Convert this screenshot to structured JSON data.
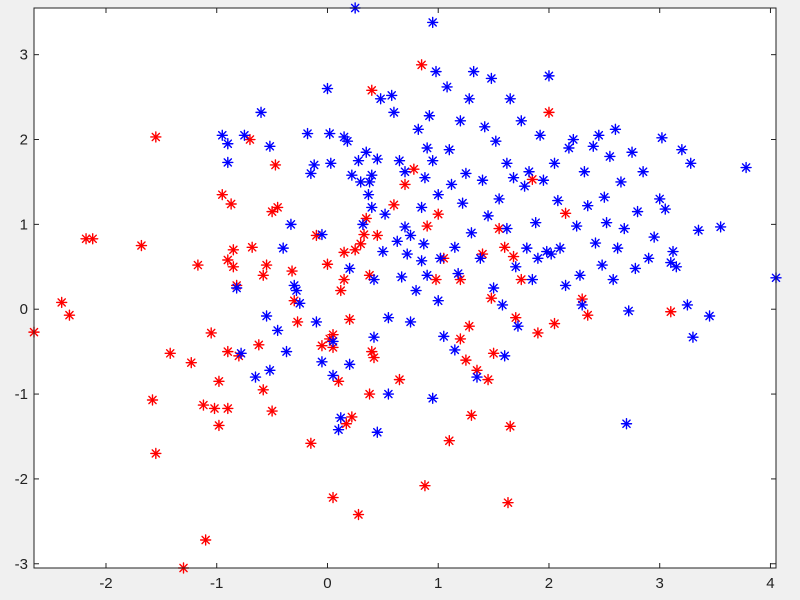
{
  "figure": {
    "background": "#f0f0f0",
    "axes_background": "#ffffff"
  },
  "chart_data": {
    "type": "scatter",
    "title": "",
    "xlabel": "",
    "ylabel": "",
    "xlim": [
      -2.65,
      4.05
    ],
    "ylim": [
      -3.05,
      3.55
    ],
    "grid": false,
    "legend": "none",
    "marker": "asterisk",
    "xticks": [
      -2,
      -1,
      0,
      1,
      2,
      3,
      4
    ],
    "yticks": [
      3,
      2,
      1,
      0,
      -1,
      -2,
      -3
    ],
    "series": [
      {
        "color": "#ff0000",
        "points": [
          [
            -2.65,
            -0.27
          ],
          [
            -2.4,
            0.08
          ],
          [
            -2.33,
            -0.07
          ],
          [
            -2.18,
            0.83
          ],
          [
            -2.12,
            0.83
          ],
          [
            -1.68,
            0.75
          ],
          [
            -1.55,
            2.03
          ],
          [
            -1.58,
            -1.07
          ],
          [
            -1.55,
            -1.7
          ],
          [
            -1.42,
            -0.52
          ],
          [
            -1.3,
            -3.05
          ],
          [
            -1.23,
            -0.63
          ],
          [
            -1.17,
            0.52
          ],
          [
            -1.12,
            -1.13
          ],
          [
            -1.1,
            -2.72
          ],
          [
            -1.05,
            -0.28
          ],
          [
            -1.02,
            -1.17
          ],
          [
            -0.98,
            -0.85
          ],
          [
            -0.98,
            -1.37
          ],
          [
            -0.95,
            1.35
          ],
          [
            -0.9,
            -0.5
          ],
          [
            -0.9,
            -1.17
          ],
          [
            -0.9,
            0.58
          ],
          [
            -0.87,
            1.24
          ],
          [
            -0.85,
            0.7
          ],
          [
            -0.85,
            0.5
          ],
          [
            -0.82,
            0.28
          ],
          [
            -0.8,
            -0.55
          ],
          [
            -0.7,
            2.0
          ],
          [
            -0.68,
            0.73
          ],
          [
            -0.62,
            -0.42
          ],
          [
            -0.58,
            -0.95
          ],
          [
            -0.58,
            0.4
          ],
          [
            -0.55,
            0.52
          ],
          [
            -0.5,
            1.15
          ],
          [
            -0.5,
            -1.2
          ],
          [
            -0.47,
            1.7
          ],
          [
            -0.45,
            1.2
          ],
          [
            -0.32,
            0.45
          ],
          [
            -0.3,
            0.1
          ],
          [
            -0.27,
            -0.15
          ],
          [
            -0.15,
            -1.58
          ],
          [
            -0.1,
            0.87
          ],
          [
            -0.05,
            -0.43
          ],
          [
            0.0,
            0.53
          ],
          [
            0.02,
            -0.35
          ],
          [
            0.05,
            -0.45
          ],
          [
            0.05,
            -0.3
          ],
          [
            0.05,
            -2.22
          ],
          [
            0.1,
            -0.85
          ],
          [
            0.12,
            0.22
          ],
          [
            0.15,
            0.67
          ],
          [
            0.15,
            0.35
          ],
          [
            0.17,
            -1.35
          ],
          [
            0.2,
            -0.12
          ],
          [
            0.22,
            -1.27
          ],
          [
            0.25,
            0.7
          ],
          [
            0.28,
            -2.42
          ],
          [
            0.3,
            0.77
          ],
          [
            0.33,
            0.88
          ],
          [
            0.35,
            1.07
          ],
          [
            0.38,
            0.4
          ],
          [
            0.4,
            2.58
          ],
          [
            0.38,
            -1.0
          ],
          [
            0.4,
            -0.5
          ],
          [
            0.42,
            -0.57
          ],
          [
            0.45,
            0.87
          ],
          [
            0.6,
            1.23
          ],
          [
            0.65,
            -0.83
          ],
          [
            0.7,
            1.47
          ],
          [
            0.78,
            1.65
          ],
          [
            0.85,
            2.88
          ],
          [
            0.88,
            -2.08
          ],
          [
            0.9,
            0.98
          ],
          [
            0.98,
            0.35
          ],
          [
            1.0,
            1.12
          ],
          [
            1.05,
            0.6
          ],
          [
            1.1,
            -1.55
          ],
          [
            1.2,
            0.35
          ],
          [
            1.2,
            -0.35
          ],
          [
            1.25,
            -0.6
          ],
          [
            1.28,
            -0.2
          ],
          [
            1.3,
            -1.25
          ],
          [
            1.35,
            -0.72
          ],
          [
            1.4,
            0.65
          ],
          [
            1.45,
            -0.83
          ],
          [
            1.48,
            0.13
          ],
          [
            1.5,
            -0.52
          ],
          [
            1.55,
            0.95
          ],
          [
            1.6,
            0.73
          ],
          [
            1.63,
            -2.28
          ],
          [
            1.65,
            -1.38
          ],
          [
            1.68,
            0.62
          ],
          [
            1.7,
            -0.1
          ],
          [
            1.75,
            0.35
          ],
          [
            1.85,
            1.53
          ],
          [
            1.9,
            -0.28
          ],
          [
            2.0,
            2.32
          ],
          [
            2.05,
            -0.17
          ],
          [
            2.15,
            1.13
          ],
          [
            2.3,
            0.12
          ],
          [
            2.35,
            -0.07
          ],
          [
            3.1,
            -0.03
          ]
        ]
      },
      {
        "color": "#0000ff",
        "points": [
          [
            -0.95,
            2.05
          ],
          [
            -0.9,
            1.73
          ],
          [
            -0.9,
            1.95
          ],
          [
            -0.82,
            0.25
          ],
          [
            -0.78,
            -0.52
          ],
          [
            -0.75,
            2.05
          ],
          [
            -0.65,
            -0.8
          ],
          [
            -0.6,
            2.32
          ],
          [
            -0.55,
            -0.08
          ],
          [
            -0.52,
            1.92
          ],
          [
            -0.52,
            -0.72
          ],
          [
            -0.45,
            -0.25
          ],
          [
            -0.4,
            0.72
          ],
          [
            -0.37,
            -0.5
          ],
          [
            -0.33,
            1.0
          ],
          [
            -0.3,
            0.28
          ],
          [
            -0.28,
            0.22
          ],
          [
            -0.25,
            0.07
          ],
          [
            -0.18,
            2.07
          ],
          [
            -0.15,
            1.6
          ],
          [
            -0.12,
            1.7
          ],
          [
            -0.1,
            -0.15
          ],
          [
            -0.05,
            0.88
          ],
          [
            -0.05,
            -0.62
          ],
          [
            0.0,
            2.6
          ],
          [
            0.02,
            2.07
          ],
          [
            0.03,
            1.72
          ],
          [
            0.05,
            -0.78
          ],
          [
            0.05,
            -0.38
          ],
          [
            0.1,
            -1.42
          ],
          [
            0.12,
            -1.28
          ],
          [
            0.15,
            2.03
          ],
          [
            0.18,
            1.98
          ],
          [
            0.2,
            0.48
          ],
          [
            0.2,
            -0.65
          ],
          [
            0.22,
            1.58
          ],
          [
            0.25,
            3.55
          ],
          [
            0.28,
            1.75
          ],
          [
            0.3,
            1.5
          ],
          [
            0.32,
            1.0
          ],
          [
            0.35,
            1.85
          ],
          [
            0.37,
            1.35
          ],
          [
            0.38,
            1.5
          ],
          [
            0.4,
            1.58
          ],
          [
            0.4,
            1.2
          ],
          [
            0.42,
            0.35
          ],
          [
            0.42,
            -0.33
          ],
          [
            0.45,
            1.77
          ],
          [
            0.45,
            -1.45
          ],
          [
            0.48,
            2.48
          ],
          [
            0.5,
            0.68
          ],
          [
            0.52,
            1.12
          ],
          [
            0.55,
            -0.1
          ],
          [
            0.55,
            -1.0
          ],
          [
            0.58,
            2.52
          ],
          [
            0.6,
            2.32
          ],
          [
            0.63,
            0.8
          ],
          [
            0.65,
            1.75
          ],
          [
            0.67,
            0.38
          ],
          [
            0.7,
            1.62
          ],
          [
            0.7,
            0.97
          ],
          [
            0.72,
            0.65
          ],
          [
            0.75,
            0.87
          ],
          [
            0.75,
            -0.15
          ],
          [
            0.8,
            0.22
          ],
          [
            0.82,
            2.12
          ],
          [
            0.85,
            1.2
          ],
          [
            0.85,
            0.57
          ],
          [
            0.87,
            0.77
          ],
          [
            0.88,
            1.55
          ],
          [
            0.9,
            1.9
          ],
          [
            0.9,
            0.4
          ],
          [
            0.92,
            2.28
          ],
          [
            0.95,
            3.38
          ],
          [
            0.95,
            1.75
          ],
          [
            0.95,
            -1.05
          ],
          [
            0.98,
            2.8
          ],
          [
            1.0,
            1.35
          ],
          [
            1.0,
            0.1
          ],
          [
            1.02,
            0.6
          ],
          [
            1.05,
            -0.32
          ],
          [
            1.08,
            2.62
          ],
          [
            1.1,
            1.88
          ],
          [
            1.12,
            1.47
          ],
          [
            1.15,
            0.73
          ],
          [
            1.15,
            -0.48
          ],
          [
            1.18,
            0.42
          ],
          [
            1.2,
            2.22
          ],
          [
            1.22,
            1.25
          ],
          [
            1.25,
            1.6
          ],
          [
            1.28,
            2.48
          ],
          [
            1.3,
            0.9
          ],
          [
            1.32,
            2.8
          ],
          [
            1.35,
            -0.8
          ],
          [
            1.38,
            0.6
          ],
          [
            1.4,
            1.52
          ],
          [
            1.42,
            2.15
          ],
          [
            1.45,
            1.1
          ],
          [
            1.48,
            2.72
          ],
          [
            1.5,
            0.25
          ],
          [
            1.52,
            1.98
          ],
          [
            1.55,
            1.3
          ],
          [
            1.58,
            0.05
          ],
          [
            1.6,
            -0.55
          ],
          [
            1.62,
            1.72
          ],
          [
            1.62,
            0.95
          ],
          [
            1.65,
            2.48
          ],
          [
            1.68,
            1.55
          ],
          [
            1.7,
            0.5
          ],
          [
            1.72,
            -0.2
          ],
          [
            1.75,
            2.22
          ],
          [
            1.78,
            1.45
          ],
          [
            1.8,
            0.72
          ],
          [
            1.82,
            1.62
          ],
          [
            1.85,
            0.35
          ],
          [
            1.88,
            1.02
          ],
          [
            1.9,
            0.6
          ],
          [
            1.92,
            2.05
          ],
          [
            1.95,
            1.52
          ],
          [
            1.98,
            0.68
          ],
          [
            2.0,
            2.75
          ],
          [
            2.02,
            0.65
          ],
          [
            2.05,
            1.72
          ],
          [
            2.08,
            1.28
          ],
          [
            2.1,
            0.72
          ],
          [
            2.15,
            0.28
          ],
          [
            2.18,
            1.9
          ],
          [
            2.22,
            2.0
          ],
          [
            2.25,
            0.98
          ],
          [
            2.28,
            0.4
          ],
          [
            2.3,
            0.05
          ],
          [
            2.32,
            1.62
          ],
          [
            2.35,
            1.22
          ],
          [
            2.4,
            1.92
          ],
          [
            2.42,
            0.78
          ],
          [
            2.45,
            2.05
          ],
          [
            2.48,
            0.52
          ],
          [
            2.5,
            1.32
          ],
          [
            2.52,
            1.02
          ],
          [
            2.55,
            1.8
          ],
          [
            2.58,
            0.35
          ],
          [
            2.6,
            2.12
          ],
          [
            2.62,
            0.72
          ],
          [
            2.65,
            1.5
          ],
          [
            2.68,
            0.95
          ],
          [
            2.7,
            -1.35
          ],
          [
            2.72,
            -0.02
          ],
          [
            2.75,
            1.85
          ],
          [
            2.78,
            0.48
          ],
          [
            2.8,
            1.15
          ],
          [
            2.85,
            1.62
          ],
          [
            2.9,
            0.6
          ],
          [
            2.95,
            0.85
          ],
          [
            3.0,
            1.3
          ],
          [
            3.02,
            2.02
          ],
          [
            3.05,
            1.18
          ],
          [
            3.1,
            0.55
          ],
          [
            3.12,
            0.68
          ],
          [
            3.15,
            0.5
          ],
          [
            3.2,
            1.88
          ],
          [
            3.25,
            0.05
          ],
          [
            3.28,
            1.72
          ],
          [
            3.3,
            -0.33
          ],
          [
            3.35,
            0.93
          ],
          [
            3.45,
            -0.08
          ],
          [
            3.55,
            0.97
          ],
          [
            3.78,
            1.67
          ],
          [
            4.05,
            0.37
          ]
        ]
      }
    ]
  }
}
